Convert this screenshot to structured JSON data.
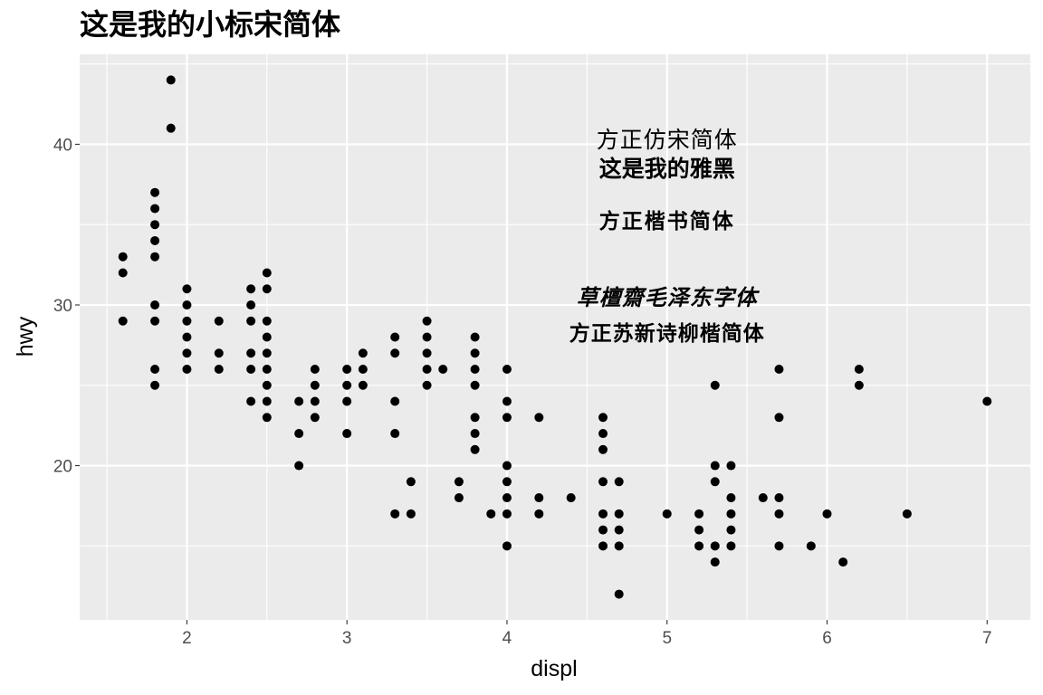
{
  "chart_data": {
    "type": "scatter",
    "title": "这是我的小标宋简体",
    "xlabel": "displ",
    "ylabel": "hwy",
    "xlim": [
      1.33,
      7.27
    ],
    "ylim": [
      10.4,
      45.6
    ],
    "x_ticks": [
      2,
      3,
      4,
      5,
      6,
      7
    ],
    "y_ticks": [
      20,
      30,
      40
    ],
    "x_tick_labels": [
      "2",
      "3",
      "4",
      "5",
      "6",
      "7"
    ],
    "y_tick_labels": [
      "20",
      "30",
      "40"
    ],
    "grid": true,
    "annotations": [
      {
        "text": "方正仿宋简体",
        "x": 5,
        "y": 39.8
      },
      {
        "text": "这是我的雅黑",
        "x": 5,
        "y": 38.0
      },
      {
        "text": "方正楷书简体",
        "x": 5,
        "y": 34.8
      },
      {
        "text": "草檀齋毛泽东字体",
        "x": 5,
        "y": 30.0
      },
      {
        "text": "方正苏新诗柳楷简体",
        "x": 5,
        "y": 27.8
      }
    ],
    "points": [
      [
        1.6,
        33
      ],
      [
        1.6,
        32
      ],
      [
        1.6,
        29
      ],
      [
        1.8,
        37
      ],
      [
        1.8,
        36
      ],
      [
        1.8,
        35
      ],
      [
        1.8,
        34
      ],
      [
        1.8,
        33
      ],
      [
        1.8,
        30
      ],
      [
        1.8,
        29
      ],
      [
        1.8,
        26
      ],
      [
        1.8,
        25
      ],
      [
        1.9,
        44
      ],
      [
        1.9,
        41
      ],
      [
        2.0,
        31
      ],
      [
        2.0,
        30
      ],
      [
        2.0,
        29
      ],
      [
        2.0,
        28
      ],
      [
        2.0,
        27
      ],
      [
        2.0,
        26
      ],
      [
        2.2,
        29
      ],
      [
        2.2,
        27
      ],
      [
        2.2,
        26
      ],
      [
        2.4,
        31
      ],
      [
        2.4,
        30
      ],
      [
        2.4,
        29
      ],
      [
        2.4,
        27
      ],
      [
        2.4,
        26
      ],
      [
        2.4,
        24
      ],
      [
        2.5,
        32
      ],
      [
        2.5,
        31
      ],
      [
        2.5,
        29
      ],
      [
        2.5,
        28
      ],
      [
        2.5,
        27
      ],
      [
        2.5,
        26
      ],
      [
        2.5,
        25
      ],
      [
        2.5,
        24
      ],
      [
        2.5,
        23
      ],
      [
        2.7,
        24
      ],
      [
        2.7,
        22
      ],
      [
        2.7,
        20
      ],
      [
        2.8,
        26
      ],
      [
        2.8,
        25
      ],
      [
        2.8,
        24
      ],
      [
        2.8,
        23
      ],
      [
        3.0,
        26
      ],
      [
        3.0,
        25
      ],
      [
        3.0,
        24
      ],
      [
        3.0,
        22
      ],
      [
        3.1,
        27
      ],
      [
        3.1,
        26
      ],
      [
        3.1,
        25
      ],
      [
        3.3,
        28
      ],
      [
        3.3,
        27
      ],
      [
        3.3,
        24
      ],
      [
        3.3,
        22
      ],
      [
        3.3,
        17
      ],
      [
        3.4,
        19
      ],
      [
        3.4,
        17
      ],
      [
        3.5,
        29
      ],
      [
        3.5,
        28
      ],
      [
        3.5,
        27
      ],
      [
        3.5,
        26
      ],
      [
        3.5,
        25
      ],
      [
        3.6,
        26
      ],
      [
        3.7,
        19
      ],
      [
        3.7,
        18
      ],
      [
        3.8,
        28
      ],
      [
        3.8,
        27
      ],
      [
        3.8,
        26
      ],
      [
        3.8,
        25
      ],
      [
        3.8,
        23
      ],
      [
        3.8,
        22
      ],
      [
        3.8,
        21
      ],
      [
        3.9,
        17
      ],
      [
        4.0,
        26
      ],
      [
        4.0,
        24
      ],
      [
        4.0,
        23
      ],
      [
        4.0,
        20
      ],
      [
        4.0,
        19
      ],
      [
        4.0,
        18
      ],
      [
        4.0,
        17
      ],
      [
        4.0,
        15
      ],
      [
        4.2,
        23
      ],
      [
        4.2,
        18
      ],
      [
        4.2,
        17
      ],
      [
        4.4,
        18
      ],
      [
        4.6,
        23
      ],
      [
        4.6,
        22
      ],
      [
        4.6,
        21
      ],
      [
        4.6,
        19
      ],
      [
        4.6,
        17
      ],
      [
        4.6,
        16
      ],
      [
        4.6,
        15
      ],
      [
        4.7,
        19
      ],
      [
        4.7,
        17
      ],
      [
        4.7,
        16
      ],
      [
        4.7,
        15
      ],
      [
        4.7,
        12
      ],
      [
        5.0,
        17
      ],
      [
        5.2,
        17
      ],
      [
        5.2,
        16
      ],
      [
        5.2,
        15
      ],
      [
        5.3,
        25
      ],
      [
        5.3,
        20
      ],
      [
        5.3,
        19
      ],
      [
        5.3,
        15
      ],
      [
        5.3,
        14
      ],
      [
        5.4,
        20
      ],
      [
        5.4,
        18
      ],
      [
        5.4,
        17
      ],
      [
        5.4,
        16
      ],
      [
        5.4,
        15
      ],
      [
        5.6,
        18
      ],
      [
        5.7,
        26
      ],
      [
        5.7,
        23
      ],
      [
        5.7,
        18
      ],
      [
        5.7,
        17
      ],
      [
        5.7,
        15
      ],
      [
        5.9,
        15
      ],
      [
        6.0,
        17
      ],
      [
        6.1,
        14
      ],
      [
        6.2,
        26
      ],
      [
        6.2,
        25
      ],
      [
        6.5,
        17
      ],
      [
        7.0,
        24
      ]
    ]
  }
}
